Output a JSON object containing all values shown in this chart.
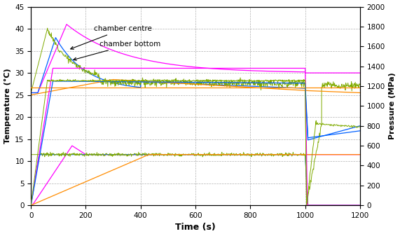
{
  "xlabel": "Time (s)",
  "ylabel_left": "Temperature (°C)",
  "ylabel_right": "Pressure (MPa)",
  "xlim": [
    0,
    1200
  ],
  "ylim_left": [
    0,
    45
  ],
  "ylim_right": [
    0,
    2000
  ],
  "xticks": [
    0,
    200,
    400,
    600,
    800,
    1000,
    1200
  ],
  "yticks_left": [
    0,
    5,
    10,
    15,
    20,
    25,
    30,
    35,
    40,
    45
  ],
  "yticks_right": [
    0,
    200,
    400,
    600,
    800,
    1000,
    1200,
    1400,
    1600,
    1800,
    2000
  ],
  "bg_color": "#ffffff",
  "grid_color": "#b0b0b0",
  "annotation_centre": "chamber centre",
  "annotation_bottom": "chamber bottom",
  "pink": "#ff00ff",
  "blue": "#0060ff",
  "olive": "#7faa00",
  "orange": "#ff8c00"
}
